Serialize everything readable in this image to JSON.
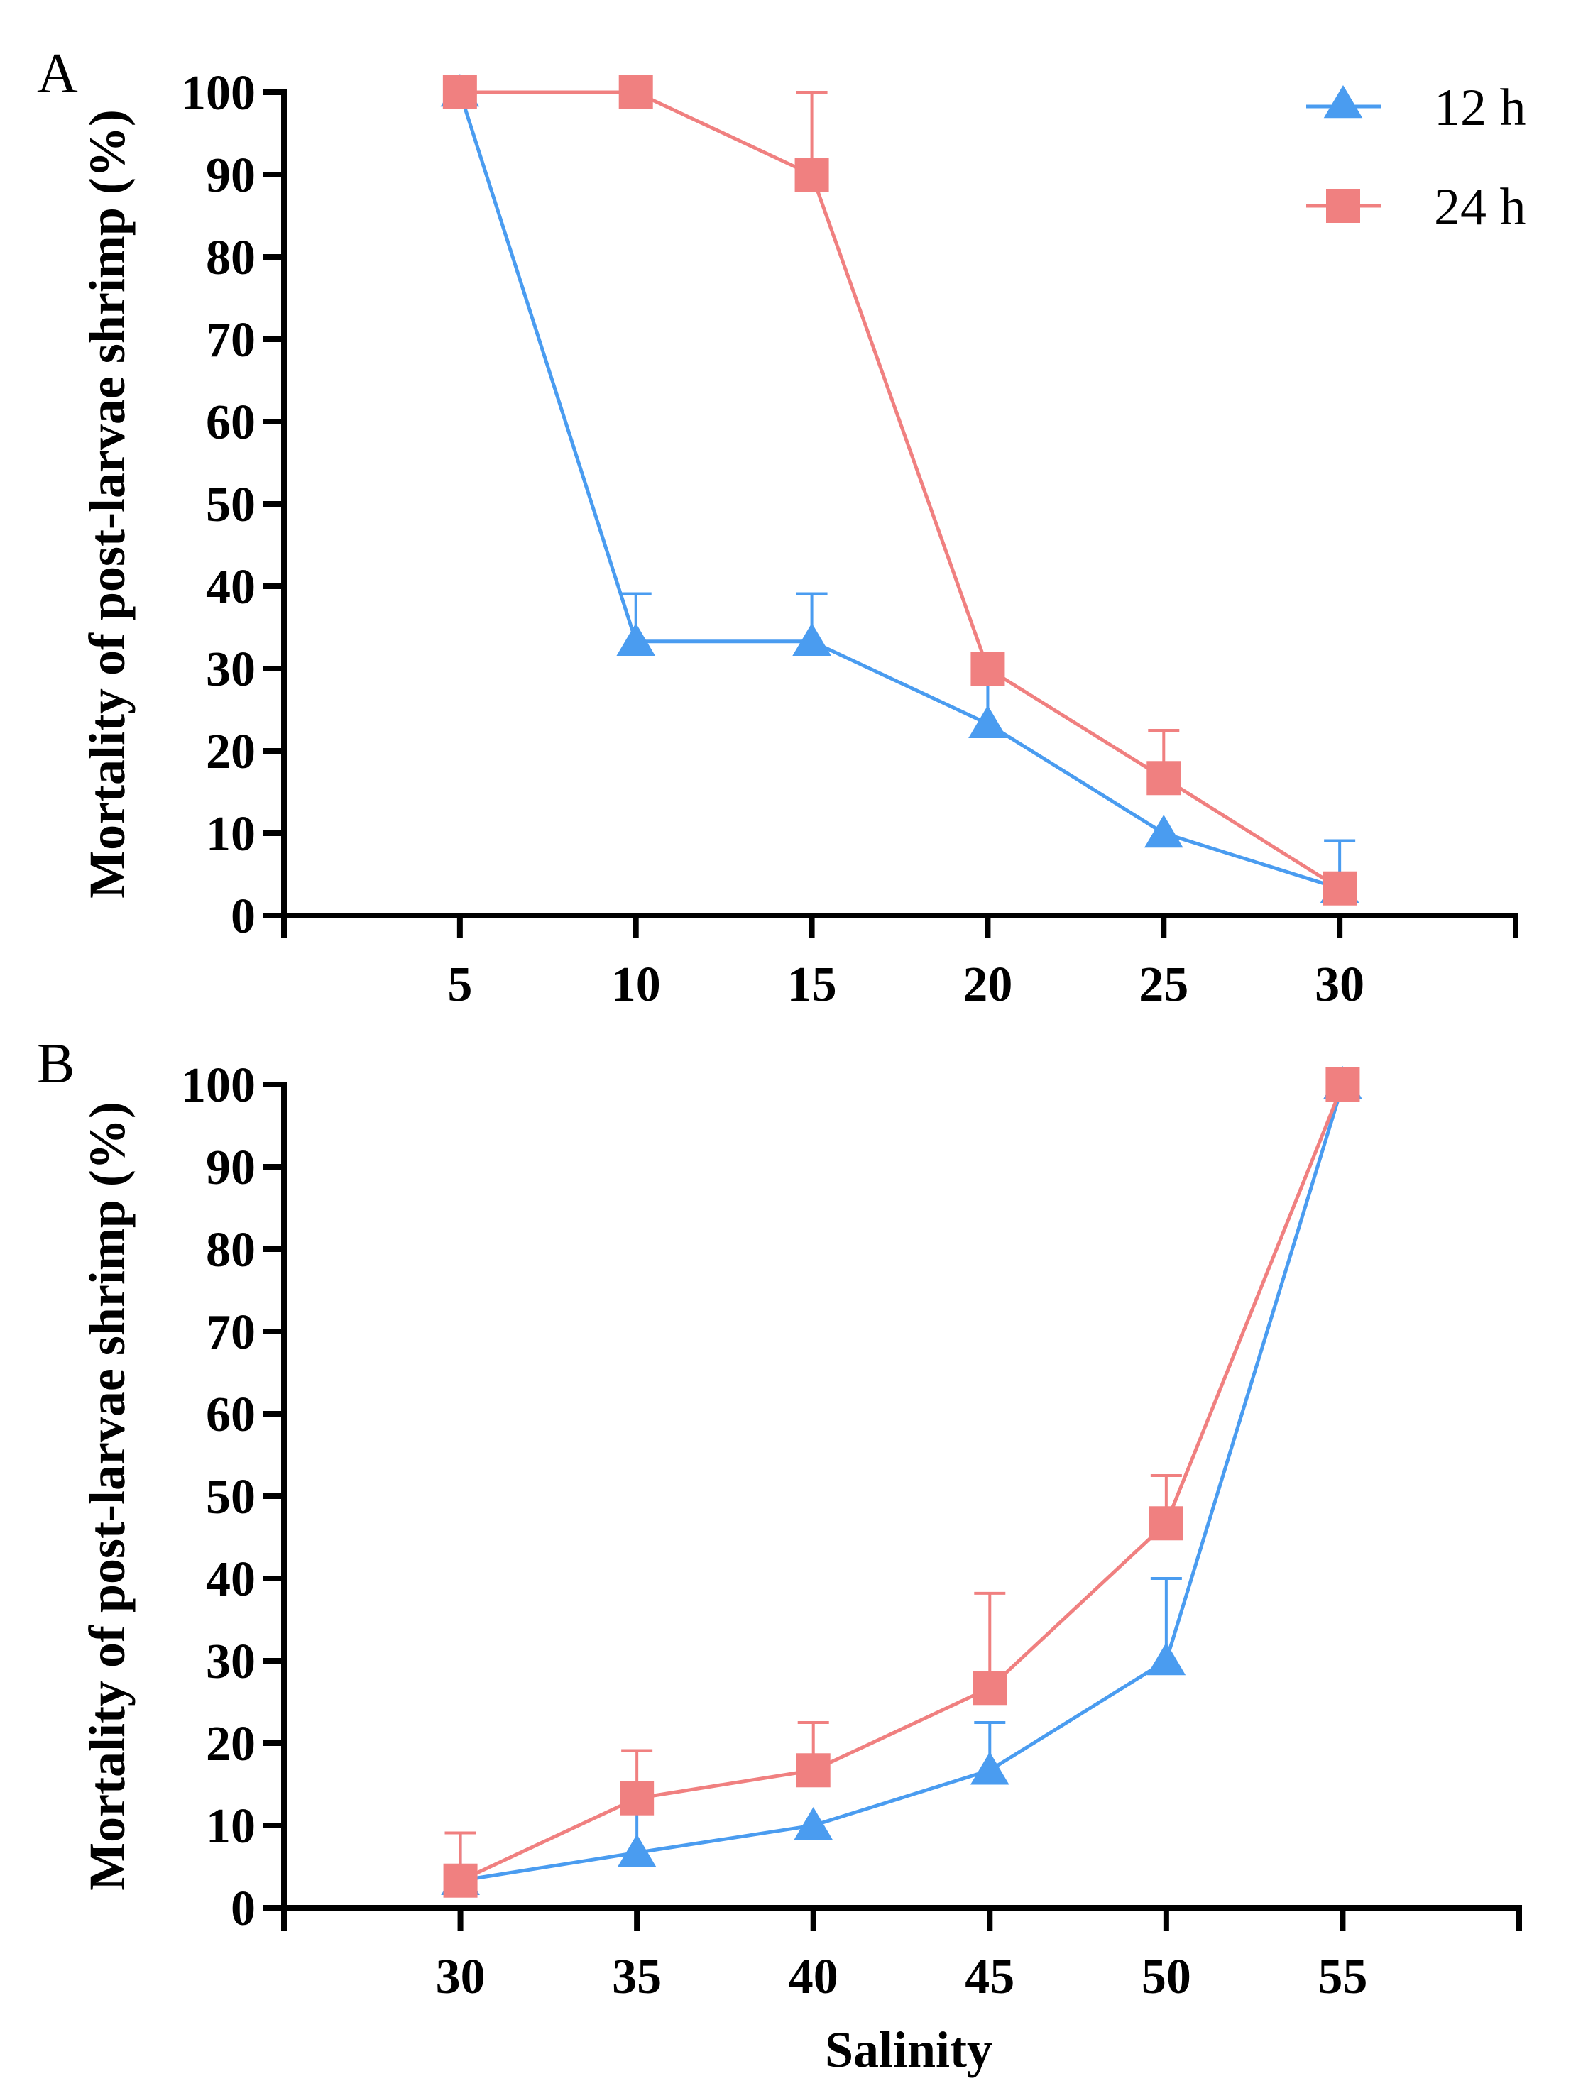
{
  "colors": {
    "h12": "#4a9cf0",
    "h24": "#f08080"
  },
  "legend": [
    {
      "key": "h12",
      "label": "12 h",
      "marker": "triangle"
    },
    {
      "key": "h24",
      "label": "24 h",
      "marker": "square"
    }
  ],
  "chart_data": [
    {
      "type": "line",
      "panel": "A",
      "title": "",
      "xlabel": "",
      "ylabel": "Mortality of post-larvae shrimp (%)",
      "x": [
        5,
        10,
        15,
        20,
        25,
        30
      ],
      "xlim": [
        0,
        35
      ],
      "ylim": [
        0,
        100
      ],
      "yticks": [
        0,
        10,
        20,
        30,
        40,
        50,
        60,
        70,
        80,
        90,
        100
      ],
      "legend_position": "top-right",
      "series": [
        {
          "name": "12 h",
          "key": "h12",
          "marker": "triangle",
          "values": [
            100,
            33.3,
            33.3,
            23.3,
            10,
            3.3
          ],
          "errors": [
            0,
            5.8,
            5.8,
            5.8,
            0,
            5.8
          ]
        },
        {
          "name": "24 h",
          "key": "h24",
          "marker": "square",
          "values": [
            100,
            100,
            90,
            30,
            16.7,
            3.3
          ],
          "errors": [
            0,
            0,
            10,
            0,
            5.8,
            0
          ]
        }
      ]
    },
    {
      "type": "line",
      "panel": "B",
      "title": "",
      "xlabel": "Salinity",
      "ylabel": "Mortality of post-larvae shrimp (%)",
      "x": [
        30,
        35,
        40,
        45,
        50,
        55
      ],
      "xlim": [
        25,
        60
      ],
      "ylim": [
        0,
        100
      ],
      "yticks": [
        0,
        10,
        20,
        30,
        40,
        50,
        60,
        70,
        80,
        90,
        100
      ],
      "series": [
        {
          "name": "12 h",
          "key": "h12",
          "marker": "triangle",
          "values": [
            3.3,
            6.7,
            10,
            16.7,
            30,
            100
          ],
          "errors": [
            5.8,
            5.8,
            0,
            5.8,
            10,
            0
          ]
        },
        {
          "name": "24 h",
          "key": "h24",
          "marker": "square",
          "values": [
            3.3,
            13.3,
            16.7,
            26.7,
            46.7,
            100
          ],
          "errors": [
            5.8,
            5.8,
            5.8,
            11.5,
            5.8,
            0
          ]
        }
      ]
    }
  ]
}
